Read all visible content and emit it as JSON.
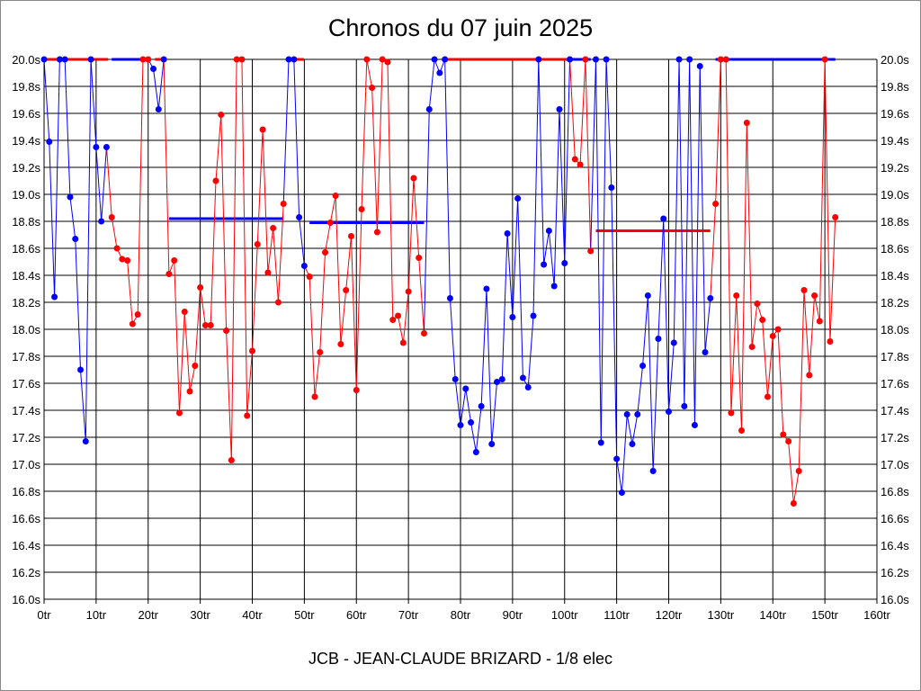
{
  "chart_data": {
    "type": "line",
    "title": "Chronos du 07 juin 2025",
    "footer": "JCB - JEAN-CLAUDE BRIZARD - 1/8 elec",
    "xlabel": "",
    "ylabel": "",
    "xlim": [
      0,
      160
    ],
    "ylim": [
      16.0,
      20.0
    ],
    "x_ticks": [
      "0tr",
      "10tr",
      "20tr",
      "30tr",
      "40tr",
      "50tr",
      "60tr",
      "70tr",
      "80tr",
      "90tr",
      "100tr",
      "110tr",
      "120tr",
      "130tr",
      "140tr",
      "150tr",
      "160tr"
    ],
    "y_ticks": [
      "16.0s",
      "16.2s",
      "16.4s",
      "16.6s",
      "16.8s",
      "17.0s",
      "17.2s",
      "17.4s",
      "17.6s",
      "17.8s",
      "18.0s",
      "18.2s",
      "18.4s",
      "18.6s",
      "18.8s",
      "19.0s",
      "19.2s",
      "19.4s",
      "19.6s",
      "19.8s",
      "20.0s"
    ],
    "grid": true,
    "colors": {
      "blue": "#0000ff",
      "red": "#ff0000"
    },
    "series": [
      {
        "color": "blue",
        "x_start": 0,
        "values": [
          20.0,
          19.39,
          18.24,
          20.0,
          20.0,
          18.98,
          18.67,
          17.7,
          17.17,
          20.0,
          19.35,
          18.8,
          19.35
        ]
      },
      {
        "color": "red",
        "x_start": 13,
        "values": [
          18.83,
          18.6,
          18.52,
          18.51,
          18.04,
          18.11,
          20.0,
          20.0
        ]
      },
      {
        "color": "blue",
        "x_start": 21,
        "values": [
          19.93,
          19.63,
          20.0
        ]
      },
      {
        "color": "red",
        "x_start": 24,
        "values": [
          18.41,
          18.51,
          17.38,
          18.13,
          17.54,
          17.73,
          18.31,
          18.03,
          18.03,
          19.1,
          19.59,
          17.99,
          17.03,
          20.0,
          20.0,
          17.36,
          17.84,
          18.63,
          19.48,
          18.42,
          18.75,
          18.2,
          18.93
        ]
      },
      {
        "color": "blue",
        "x_start": 47,
        "values": [
          20.0,
          20.0,
          18.83,
          18.47
        ]
      },
      {
        "color": "red",
        "x_start": 51,
        "values": [
          18.39,
          17.5,
          17.83,
          18.57,
          18.79,
          18.99,
          17.89,
          18.29,
          18.69,
          17.55,
          18.89,
          20.0,
          19.79,
          18.72,
          20.0,
          19.98,
          18.07,
          18.1,
          17.9,
          18.28,
          19.12,
          18.53,
          17.97
        ]
      },
      {
        "color": "blue",
        "x_start": 74,
        "values": [
          19.63,
          20.0,
          19.9,
          20.0,
          18.23,
          17.63,
          17.29,
          17.56,
          17.31,
          17.09,
          17.43,
          18.3,
          17.15,
          17.61,
          17.63,
          18.71,
          18.09,
          18.97,
          17.64,
          17.57,
          18.1,
          20.0,
          18.48,
          18.73,
          18.32,
          19.63,
          18.49,
          20.0
        ]
      },
      {
        "color": "red",
        "x_start": 102,
        "values": [
          19.26,
          19.22,
          20.0,
          18.58
        ]
      },
      {
        "color": "blue",
        "x_start": 106,
        "values": [
          20.0,
          17.16,
          20.0,
          19.05,
          17.04,
          16.79,
          17.37,
          17.15,
          17.37,
          17.73,
          18.25,
          16.95,
          17.93,
          18.82,
          17.39,
          17.9,
          20.0,
          17.43,
          20.0,
          17.29,
          19.95,
          17.83,
          18.23
        ]
      },
      {
        "color": "red",
        "x_start": 129,
        "values": [
          18.93,
          20.0,
          20.0,
          17.38,
          18.25,
          17.25,
          19.53,
          17.87,
          18.19,
          18.07,
          17.5,
          17.95,
          18.0,
          17.22,
          17.17,
          16.71,
          16.95,
          18.29,
          17.66,
          18.25,
          18.06,
          20.0,
          17.91,
          18.83
        ]
      }
    ],
    "average_lines": [
      {
        "color": "blue",
        "from": 24,
        "to": 46,
        "value": 18.82
      },
      {
        "color": "blue",
        "from": 51,
        "to": 73,
        "value": 18.79
      },
      {
        "color": "red",
        "from": 106,
        "to": 128,
        "value": 18.73
      }
    ],
    "top_bars": [
      {
        "color": "red",
        "from": 0,
        "to": 12.3
      },
      {
        "color": "blue",
        "from": 13,
        "to": 18.9
      },
      {
        "color": "red",
        "from": 21.3,
        "to": 23.2
      },
      {
        "color": "red",
        "from": 47.7,
        "to": 49.9
      },
      {
        "color": "red",
        "from": 76.6,
        "to": 101
      },
      {
        "color": "blue",
        "from": 101,
        "to": 105
      },
      {
        "color": "blue",
        "from": 129,
        "to": 152
      }
    ]
  }
}
